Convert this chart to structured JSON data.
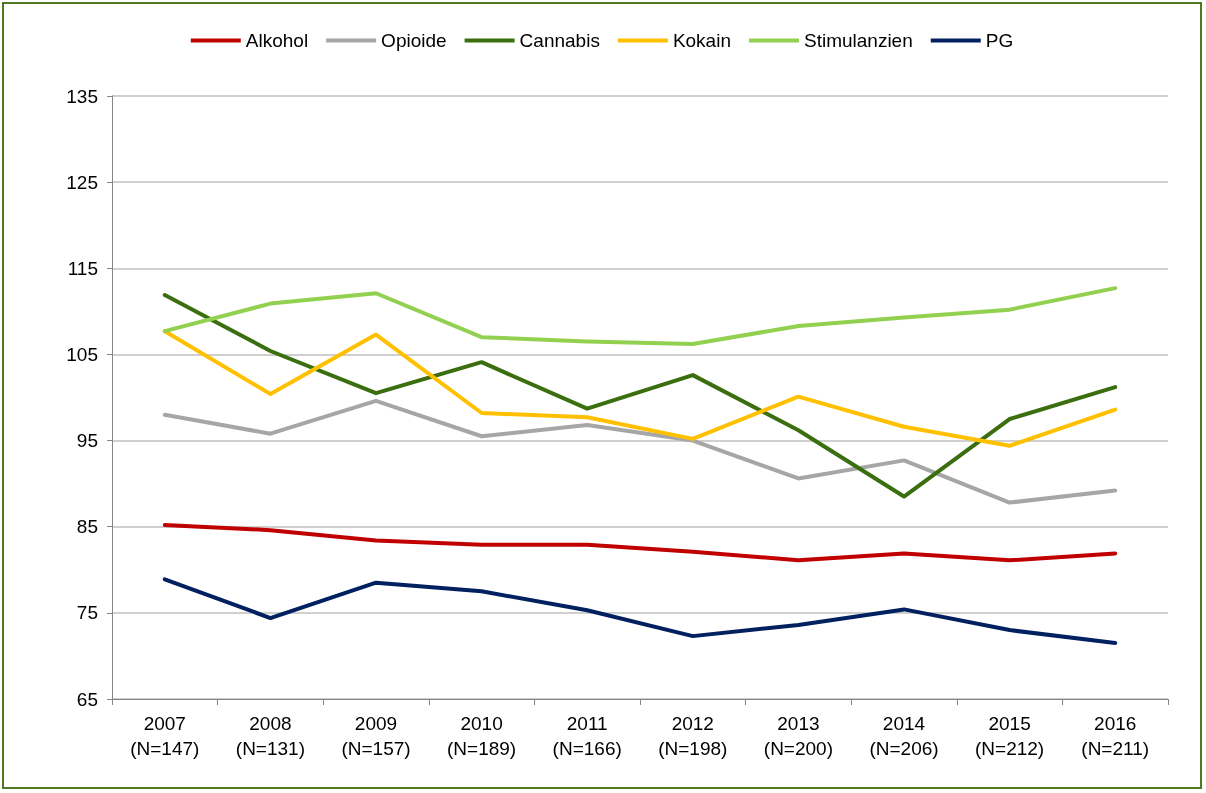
{
  "chart_data": {
    "type": "line",
    "categories": [
      "2007\n(N=147)",
      "2008\n(N=131)",
      "2009\n(N=157)",
      "2010\n(N=189)",
      "2011\n(N=166)",
      "2012\n(N=198)",
      "2013\n(N=200)",
      "2014\n(N=206)",
      "2015\n(N=212)",
      "2016\n(N=211)"
    ],
    "series": [
      {
        "name": "Alkohol",
        "color": "#c00000",
        "values": [
          85.2,
          84.6,
          83.4,
          82.9,
          82.9,
          82.1,
          81.1,
          81.9,
          81.1,
          81.9
        ]
      },
      {
        "name": "Opioide",
        "color": "#a6a6a6",
        "values": [
          98.0,
          95.8,
          99.6,
          95.5,
          96.8,
          95.0,
          90.6,
          92.7,
          87.8,
          89.2
        ]
      },
      {
        "name": "Cannabis",
        "color": "#3a6e0f",
        "values": [
          111.9,
          105.4,
          100.5,
          104.1,
          98.7,
          102.6,
          96.2,
          88.5,
          97.5,
          101.2
        ]
      },
      {
        "name": "Kokain",
        "color": "#ffc000",
        "values": [
          107.7,
          100.4,
          107.3,
          98.2,
          97.7,
          95.2,
          100.1,
          96.6,
          94.4,
          98.6
        ]
      },
      {
        "name": "Stimulanzien",
        "color": "#92d050",
        "values": [
          107.7,
          110.9,
          112.1,
          107.0,
          106.5,
          106.2,
          108.3,
          109.3,
          110.2,
          112.7
        ]
      },
      {
        "name": "PG",
        "color": "#002060",
        "values": [
          78.9,
          74.4,
          78.5,
          77.5,
          75.3,
          72.3,
          73.6,
          75.4,
          73.0,
          71.5
        ]
      }
    ],
    "ylim": [
      65,
      135
    ],
    "yticks": [
      65,
      75,
      85,
      95,
      105,
      115,
      125,
      135
    ],
    "grid": "y",
    "legend": "top",
    "marker": "none",
    "line_style": "solid"
  }
}
